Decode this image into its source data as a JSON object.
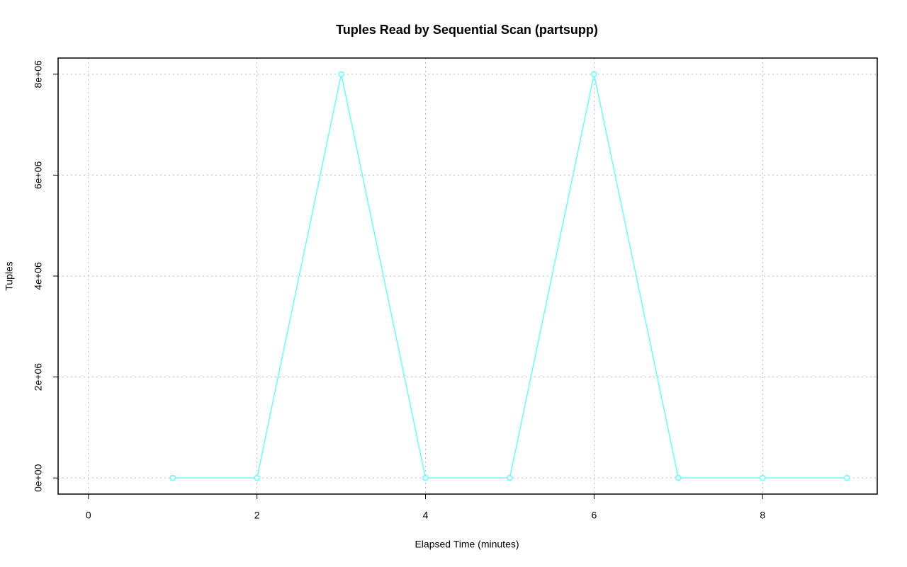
{
  "chart_data": {
    "type": "line",
    "title": "Tuples Read by Sequential Scan (partsupp)",
    "x_label": "Elapsed Time (minutes)",
    "y_label": "Tuples",
    "x": [
      1,
      2,
      3,
      4,
      5,
      6,
      7,
      8,
      9
    ],
    "series": [
      {
        "name": "partsupp",
        "color": "#66ffff",
        "values": [
          0,
          0,
          8000000,
          0,
          0,
          8000000,
          0,
          0,
          0
        ]
      }
    ],
    "xlim": [
      -0.36,
      9.36
    ],
    "xticks": [
      0,
      2,
      4,
      6,
      8
    ],
    "ylim": [
      -320000,
      8320000
    ],
    "yticks": [
      {
        "value": 0,
        "label": "0e+00"
      },
      {
        "value": 2000000,
        "label": "2e+06"
      },
      {
        "value": 4000000,
        "label": "4e+06"
      },
      {
        "value": 6000000,
        "label": "6e+06"
      },
      {
        "value": 8000000,
        "label": "8e+06"
      }
    ],
    "grid": true
  }
}
